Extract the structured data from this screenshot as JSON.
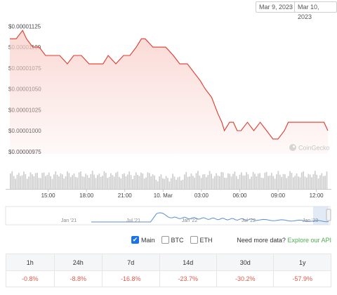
{
  "date_range": {
    "from": "Mar 9, 2023",
    "to": "Mar 10, 2023",
    "arrow": "→"
  },
  "chart_data": [
    {
      "type": "area",
      "y_ticks": [
        "$0.00001125",
        "$0.00001100",
        "$0.00001075",
        "$0.00001050",
        "$0.00001025",
        "$0.00001000",
        "$0.00000975"
      ],
      "y_tick_values": [
        1.125e-05,
        1.1e-05,
        1.075e-05,
        1.05e-05,
        1.025e-05,
        1e-05,
        9.75e-06
      ],
      "ylim": [
        9.723e-06,
        1.132e-05
      ],
      "x_ticks": [
        "15:00",
        "18:00",
        "21:00",
        "10. Mar",
        "03:00",
        "06:00",
        "09:00",
        "12:00"
      ],
      "x_tick_positions": [
        3,
        6,
        9,
        12,
        15,
        18,
        21,
        24
      ],
      "xlim": [
        0,
        24.9
      ],
      "x": [
        0,
        0.5,
        1,
        1.3,
        1.8,
        2.3,
        2.8,
        3.4,
        3.9,
        4.5,
        5,
        5.6,
        6.2,
        6.8,
        7.3,
        7.7,
        8.3,
        8.9,
        9.4,
        9.9,
        10.3,
        10.6,
        11.2,
        11.7,
        12.2,
        12.8,
        13.3,
        13.9,
        14.4,
        14.9,
        15.3,
        15.8,
        16.3,
        16.6,
        16.8,
        17.2,
        17.5,
        17.8,
        18.1,
        18.6,
        19.1,
        19.6,
        20.1,
        20.6,
        21,
        21.5,
        21.8,
        22.2,
        22.7,
        23.2,
        23.7,
        24.2,
        24.6,
        24.9
      ],
      "values": [
        1.11e-05,
        1.11e-05,
        1.12e-05,
        1.11e-05,
        1.1e-05,
        1.1e-05,
        1.09e-05,
        1.09e-05,
        1.09e-05,
        1.08e-05,
        1.09e-05,
        1.09e-05,
        1.08e-05,
        1.08e-05,
        1.08e-05,
        1.09e-05,
        1.08e-05,
        1.09e-05,
        1.09e-05,
        1.1e-05,
        1.11e-05,
        1.11e-05,
        1.1e-05,
        1.1e-05,
        1.1e-05,
        1.09e-05,
        1.08e-05,
        1.08e-05,
        1.07e-05,
        1.06e-05,
        1.05e-05,
        1.04e-05,
        1.02e-05,
        1.01e-05,
        1e-05,
        1.01e-05,
        1.01e-05,
        1e-05,
        1e-05,
        1.01e-05,
        1e-05,
        1.01e-05,
        1e-05,
        9.9e-06,
        9.9e-06,
        1e-05,
        1.01e-05,
        1.01e-05,
        1.01e-05,
        1.01e-05,
        1.01e-05,
        1.01e-05,
        1.01e-05,
        1e-05
      ],
      "line_color": "#e0382a",
      "fill_color": "#f9d2cd",
      "grid": false
    },
    {
      "type": "bar",
      "bars": 190,
      "series_note_color": "#d0d0d0"
    },
    {
      "type": "line",
      "x_ticks": [
        "Jan '21",
        "Jul '21",
        "Jan '22",
        "Jul '22",
        "Jan '23"
      ],
      "line_color": "#5b8fd1",
      "handle_color": "#d8d8d8"
    }
  ],
  "watermark": "CoinGecko",
  "legend": {
    "main_label": "Main",
    "main_checked": true,
    "check_glyph": "✔",
    "btc_label": "BTC",
    "btc_checked": false,
    "eth_label": "ETH",
    "eth_checked": false
  },
  "more_data": {
    "text": "Need more data?",
    "link": "Explore our API"
  },
  "performance": {
    "headers": [
      "1h",
      "24h",
      "7d",
      "14d",
      "30d",
      "1y"
    ],
    "values": [
      "-0.8%",
      "-8.8%",
      "-16.8%",
      "-23.7%",
      "-30.2%",
      "-57.9%"
    ]
  }
}
